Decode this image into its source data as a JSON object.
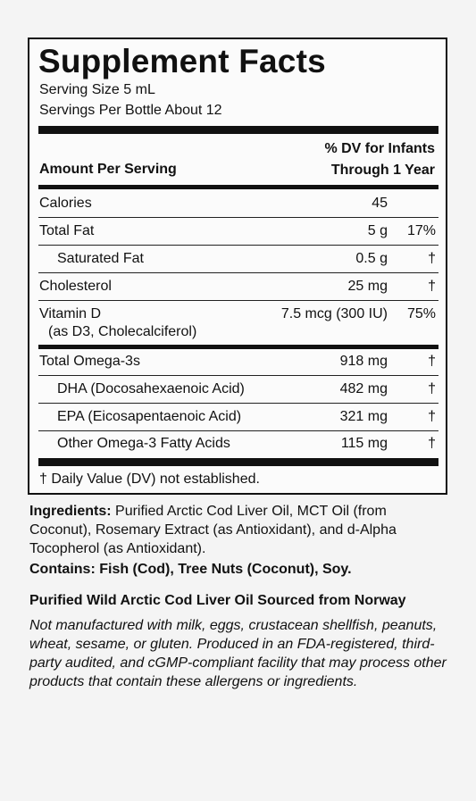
{
  "title": "Supplement Facts",
  "serving_size": "Serving Size 5 mL",
  "servings_per": "Servings Per Bottle About 12",
  "amount_header": "Amount Per Serving",
  "dv_header_1": "% DV for Infants",
  "dv_header_2": "Through 1 Year",
  "rows": [
    {
      "name": "Calories",
      "amount": "45",
      "dv": ""
    },
    {
      "name": "Total Fat",
      "amount": "5 g",
      "dv": "17%"
    },
    {
      "name": "Saturated Fat",
      "amount": "0.5 g",
      "dv": "†"
    },
    {
      "name": "Cholesterol",
      "amount": "25 mg",
      "dv": "†"
    },
    {
      "name": "Vitamin D",
      "name2": "(as D3, Cholecalciferol)",
      "amount": "7.5 mcg (300 IU)",
      "dv": "75%"
    },
    {
      "name": "Total Omega-3s",
      "amount": "918 mg",
      "dv": "†"
    },
    {
      "name": "DHA (Docosahexaenoic Acid)",
      "amount": "482 mg",
      "dv": "†"
    },
    {
      "name": "EPA (Eicosapentaenoic Acid)",
      "amount": "321 mg",
      "dv": "†"
    },
    {
      "name": "Other Omega-3 Fatty Acids",
      "amount": "115 mg",
      "dv": "†"
    }
  ],
  "dv_note": "† Daily Value (DV) not established.",
  "ingredients_label": "Ingredients:",
  "ingredients_text": "Purified Arctic Cod Liver Oil, MCT Oil (from Coconut), Rosemary Extract (as Antioxidant), and d-Alpha Tocopherol (as Antioxidant).",
  "contains": "Contains: Fish (Cod), Tree Nuts (Coconut), Soy.",
  "sourced": "Purified Wild Arctic Cod Liver Oil Sourced from Norway",
  "allergen_note": "Not manufactured with milk, eggs, crustacean shellfish, peanuts, wheat, sesame, or gluten. Produced in an FDA-registered, third-party audited, and cGMP-compliant facility that may process other products that contain these allergens or ingredients."
}
